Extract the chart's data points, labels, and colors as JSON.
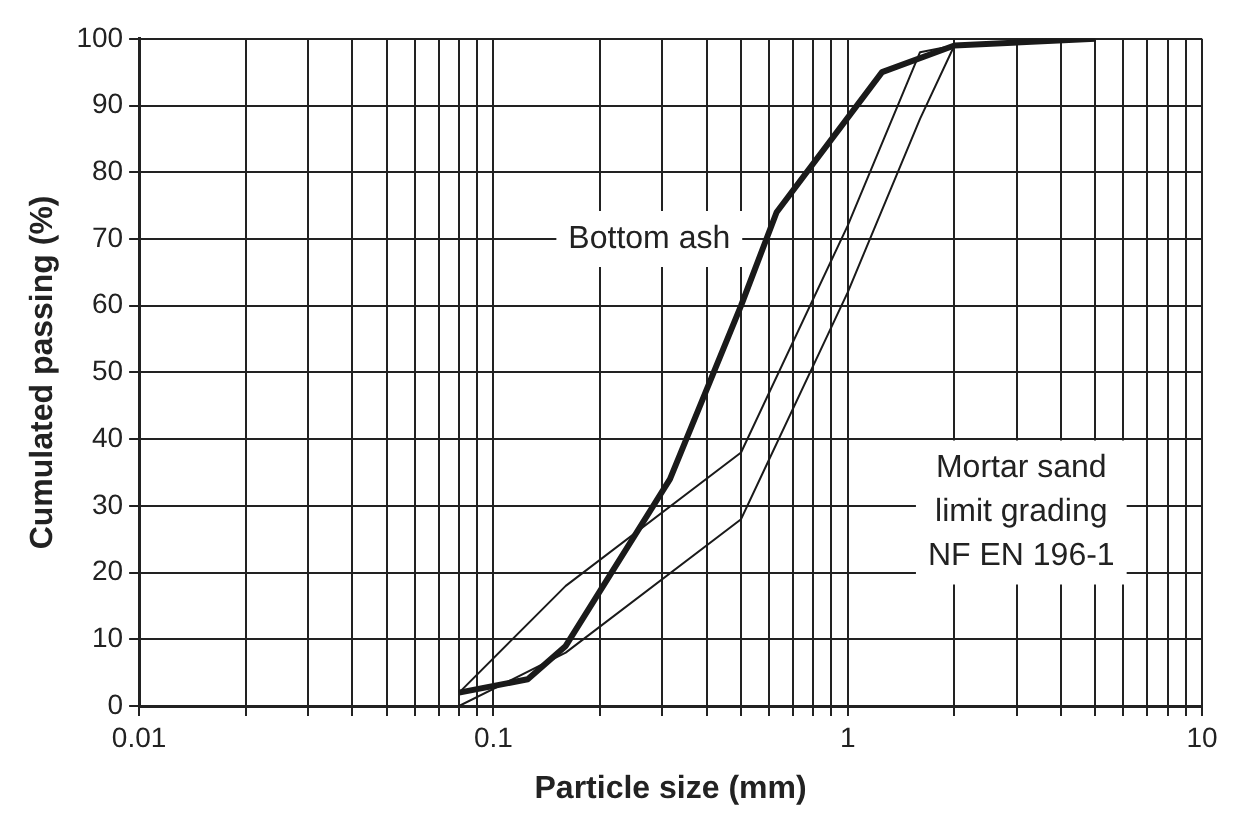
{
  "chart_data": {
    "type": "line",
    "xlabel": "Particle size (mm)",
    "ylabel": "Cumulated passing (%)",
    "log": "x",
    "grid": true,
    "legend": false,
    "marker": "none",
    "line_style": "solid",
    "xlim": [
      0.01,
      10
    ],
    "ylim": [
      0,
      100
    ],
    "xticks": [
      0.01,
      {
        "value": 0.02,
        "label": null
      },
      {
        "value": 0.03,
        "label": null
      },
      {
        "value": 0.04,
        "label": null
      },
      {
        "value": 0.05,
        "label": null
      },
      {
        "value": 0.06,
        "label": null
      },
      {
        "value": 0.07,
        "label": null
      },
      {
        "value": 0.08,
        "label": null
      },
      {
        "value": 0.09,
        "label": null
      },
      0.1,
      {
        "value": 0.2,
        "label": null
      },
      {
        "value": 0.3,
        "label": null
      },
      {
        "value": 0.4,
        "label": null
      },
      {
        "value": 0.5,
        "label": null
      },
      {
        "value": 0.6,
        "label": null
      },
      {
        "value": 0.7,
        "label": null
      },
      {
        "value": 0.8,
        "label": null
      },
      {
        "value": 0.9,
        "label": null
      },
      1,
      {
        "value": 2,
        "label": null
      },
      {
        "value": 3,
        "label": null
      },
      {
        "value": 4,
        "label": null
      },
      {
        "value": 5,
        "label": null
      },
      {
        "value": 6,
        "label": null
      },
      {
        "value": 7,
        "label": null
      },
      {
        "value": 8,
        "label": null
      },
      {
        "value": 9,
        "label": null
      },
      10
    ],
    "yticks": [
      0,
      10,
      20,
      30,
      40,
      50,
      60,
      70,
      80,
      90,
      100
    ],
    "series": [
      {
        "color": "#1a1a1a",
        "x": [
          0.08,
          0.125,
          0.16,
          0.315,
          0.5,
          0.63,
          1.25,
          2,
          5
        ],
        "values": [
          2,
          4,
          9,
          34,
          60,
          74,
          95,
          99,
          100
        ]
      },
      {
        "color": "#1a1a1a",
        "x": [
          0.08,
          0.16,
          0.5,
          1,
          1.6,
          2
        ],
        "values": [
          2,
          18,
          38,
          72,
          98,
          99
        ]
      },
      {
        "color": "#1a1a1a",
        "x": [
          0.08,
          0.16,
          0.5,
          1,
          1.6,
          2
        ],
        "values": [
          0,
          8,
          28,
          62,
          88,
          99
        ]
      }
    ],
    "annotations": [
      "Bottom ash",
      "Mortar sand\nlimit grading\nNF EN 196-1"
    ]
  }
}
